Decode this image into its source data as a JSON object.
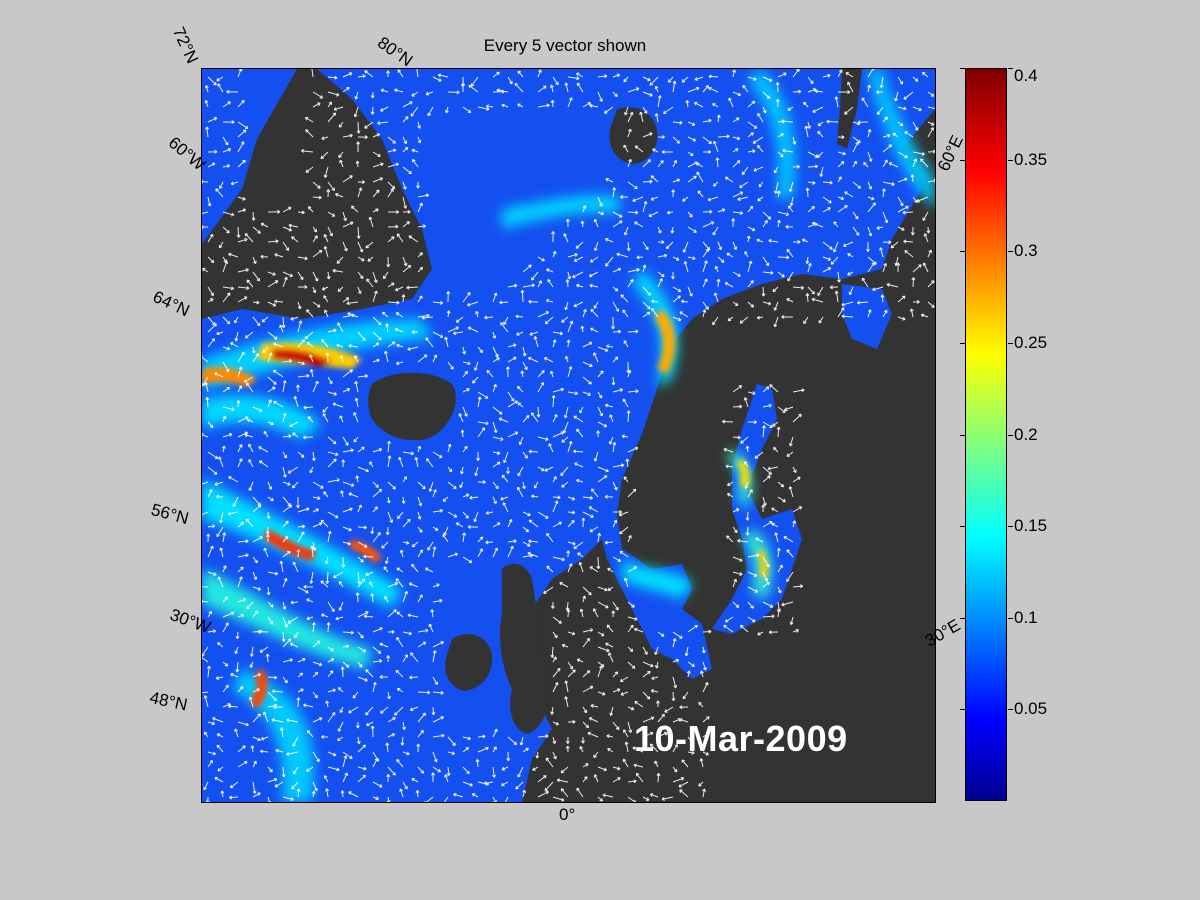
{
  "title": "Every 5 vector shown",
  "date": "10-Mar-2009",
  "lat_labels": [
    "72°N",
    "60°W",
    "64°N",
    "56°N",
    "30°W",
    "48°N"
  ],
  "top_labels": [
    "80°N"
  ],
  "right_labels": [
    "60°E",
    "30°E"
  ],
  "bottom_labels": [
    "0°"
  ],
  "colorbar": {
    "ticks": [
      "0.4",
      "0.35",
      "0.3",
      "0.25",
      "0.2",
      "0.15",
      "0.1",
      "0.05"
    ],
    "vmin": 0,
    "vmax": 0.4,
    "colormap": "jet"
  },
  "colors": {
    "land": "#333333",
    "ocean_low": "#0a1ae6",
    "ocean_mid": "#1a6cff",
    "arrows": "#ffffff",
    "background": "#c8c8c8"
  }
}
